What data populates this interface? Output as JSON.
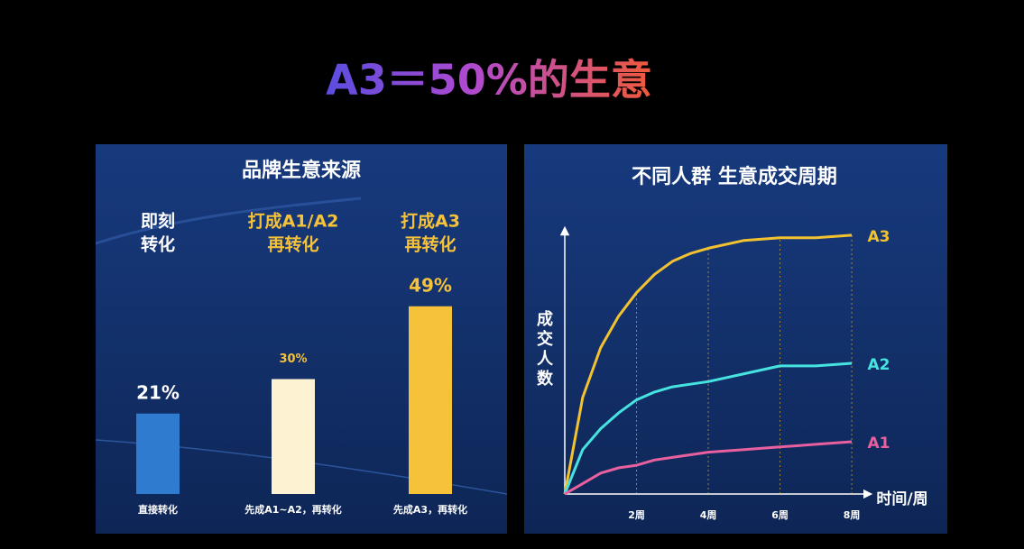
{
  "title": "A3＝50%的生意",
  "chart_data": [
    {
      "type": "bar",
      "title": "品牌生意来源",
      "headers": [
        [
          "即刻",
          "转化"
        ],
        [
          "打成A1/A2",
          "再转化"
        ],
        [
          "打成A3",
          "再转化"
        ]
      ],
      "categories": [
        "直接转化",
        "先成A1~A2，再转化",
        "先成A3，再转化"
      ],
      "values": [
        21,
        30,
        49
      ],
      "value_labels": [
        "21%",
        "30%",
        "49%"
      ],
      "colors": [
        "#2f7bd0",
        "#fdf3d2",
        "#f5c23a"
      ]
    },
    {
      "type": "line",
      "title": "不同人群 生意成交周期",
      "y_label": "成交人数",
      "x_label": "时间/周",
      "x": [
        0,
        0.5,
        1,
        1.5,
        2,
        2.5,
        3,
        3.5,
        4,
        5,
        6,
        7,
        8
      ],
      "xlim": [
        0,
        8.4
      ],
      "ylim": [
        0,
        100
      ],
      "xticks": [
        {
          "value": 2,
          "label": "2周"
        },
        {
          "value": 4,
          "label": "4周"
        },
        {
          "value": 6,
          "label": "6周"
        },
        {
          "value": 8,
          "label": "8周"
        }
      ],
      "series": [
        {
          "name": "A3",
          "color": "#f2c230",
          "values": [
            0,
            37,
            56,
            68,
            77,
            84,
            89,
            92,
            94,
            97,
            98,
            98,
            99
          ]
        },
        {
          "name": "A2",
          "color": "#46e3e0",
          "values": [
            0,
            17,
            25,
            31,
            36,
            39,
            41,
            42,
            43,
            46,
            49,
            49,
            50
          ]
        },
        {
          "name": "A1",
          "color": "#e8609e",
          "values": [
            0,
            4,
            8,
            10,
            11,
            13,
            14,
            15,
            16,
            17,
            18,
            19,
            20
          ]
        }
      ]
    }
  ]
}
